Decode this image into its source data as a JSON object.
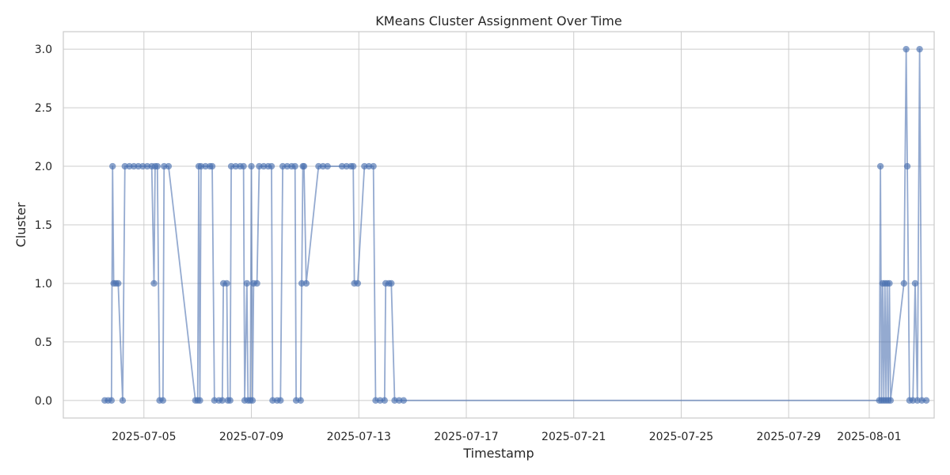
{
  "chart_data": {
    "type": "line",
    "title": "KMeans Cluster Assignment Over Time",
    "xlabel": "Timestamp",
    "ylabel": "Cluster",
    "x_range": [
      "2025-07-02T00:00",
      "2025-08-03T10:00"
    ],
    "ylim": [
      -0.15,
      3.15
    ],
    "y_ticks": [
      0.0,
      0.5,
      1.0,
      1.5,
      2.0,
      2.5,
      3.0
    ],
    "y_tick_labels": [
      "0.0",
      "0.5",
      "1.0",
      "1.5",
      "2.0",
      "2.5",
      "3.0"
    ],
    "x_ticks": [
      "2025-07-05",
      "2025-07-09",
      "2025-07-13",
      "2025-07-17",
      "2025-07-21",
      "2025-07-25",
      "2025-07-29",
      "2025-08-01"
    ],
    "grid": true,
    "legend": "none",
    "series": [
      {
        "color": "#4c72b0",
        "points": [
          [
            "2025-07-03T13:00",
            0
          ],
          [
            "2025-07-03T16:00",
            0
          ],
          [
            "2025-07-03T19:00",
            0
          ],
          [
            "2025-07-03T20:00",
            2
          ],
          [
            "2025-07-03T21:00",
            1
          ],
          [
            "2025-07-03T23:00",
            1
          ],
          [
            "2025-07-04T01:00",
            1
          ],
          [
            "2025-07-04T05:00",
            0
          ],
          [
            "2025-07-04T07:00",
            2
          ],
          [
            "2025-07-04T11:00",
            2
          ],
          [
            "2025-07-04T15:00",
            2
          ],
          [
            "2025-07-04T19:00",
            2
          ],
          [
            "2025-07-04T23:00",
            2
          ],
          [
            "2025-07-05T03:00",
            2
          ],
          [
            "2025-07-05T07:00",
            2
          ],
          [
            "2025-07-05T09:00",
            1
          ],
          [
            "2025-07-05T10:00",
            2
          ],
          [
            "2025-07-05T12:00",
            2
          ],
          [
            "2025-07-05T14:00",
            0
          ],
          [
            "2025-07-05T17:00",
            0
          ],
          [
            "2025-07-05T18:00",
            2
          ],
          [
            "2025-07-05T22:00",
            2
          ],
          [
            "2025-07-06T22:00",
            0
          ],
          [
            "2025-07-07T00:00",
            0
          ],
          [
            "2025-07-07T01:00",
            2
          ],
          [
            "2025-07-07T02:00",
            0
          ],
          [
            "2025-07-07T03:00",
            2
          ],
          [
            "2025-07-07T07:00",
            2
          ],
          [
            "2025-07-07T11:00",
            2
          ],
          [
            "2025-07-07T13:00",
            2
          ],
          [
            "2025-07-07T15:00",
            0
          ],
          [
            "2025-07-07T19:00",
            0
          ],
          [
            "2025-07-07T22:00",
            0
          ],
          [
            "2025-07-07T23:00",
            1
          ],
          [
            "2025-07-08T02:00",
            1
          ],
          [
            "2025-07-08T03:00",
            0
          ],
          [
            "2025-07-08T05:00",
            0
          ],
          [
            "2025-07-08T06:00",
            2
          ],
          [
            "2025-07-08T10:00",
            2
          ],
          [
            "2025-07-08T14:00",
            2
          ],
          [
            "2025-07-08T17:00",
            2
          ],
          [
            "2025-07-08T18:00",
            0
          ],
          [
            "2025-07-08T20:00",
            1
          ],
          [
            "2025-07-08T21:00",
            0
          ],
          [
            "2025-07-08T23:00",
            0
          ],
          [
            "2025-07-09T00:00",
            2
          ],
          [
            "2025-07-09T01:00",
            0
          ],
          [
            "2025-07-09T02:00",
            1
          ],
          [
            "2025-07-09T05:00",
            1
          ],
          [
            "2025-07-09T07:00",
            2
          ],
          [
            "2025-07-09T11:00",
            2
          ],
          [
            "2025-07-09T15:00",
            2
          ],
          [
            "2025-07-09T18:00",
            2
          ],
          [
            "2025-07-09T19:00",
            0
          ],
          [
            "2025-07-09T23:00",
            0
          ],
          [
            "2025-07-10T02:00",
            0
          ],
          [
            "2025-07-10T04:00",
            2
          ],
          [
            "2025-07-10T08:00",
            2
          ],
          [
            "2025-07-10T12:00",
            2
          ],
          [
            "2025-07-10T15:00",
            2
          ],
          [
            "2025-07-10T16:00",
            0
          ],
          [
            "2025-07-10T20:00",
            0
          ],
          [
            "2025-07-10T21:00",
            1
          ],
          [
            "2025-07-10T22:00",
            2
          ],
          [
            "2025-07-10T23:00",
            2
          ],
          [
            "2025-07-11T01:00",
            1
          ],
          [
            "2025-07-11T12:00",
            2
          ],
          [
            "2025-07-11T16:00",
            2
          ],
          [
            "2025-07-11T20:00",
            2
          ],
          [
            "2025-07-12T09:00",
            2
          ],
          [
            "2025-07-12T13:00",
            2
          ],
          [
            "2025-07-12T17:00",
            2
          ],
          [
            "2025-07-12T19:00",
            2
          ],
          [
            "2025-07-12T20:00",
            1
          ],
          [
            "2025-07-12T23:00",
            1
          ],
          [
            "2025-07-13T05:00",
            2
          ],
          [
            "2025-07-13T09:00",
            2
          ],
          [
            "2025-07-13T13:00",
            2
          ],
          [
            "2025-07-13T15:00",
            0
          ],
          [
            "2025-07-13T19:00",
            0
          ],
          [
            "2025-07-13T23:00",
            0
          ],
          [
            "2025-07-14T00:00",
            1
          ],
          [
            "2025-07-14T03:00",
            1
          ],
          [
            "2025-07-14T05:00",
            1
          ],
          [
            "2025-07-14T08:00",
            0
          ],
          [
            "2025-07-14T12:00",
            0
          ],
          [
            "2025-07-14T16:00",
            0
          ],
          [
            "2025-08-01T09:00",
            0
          ],
          [
            "2025-08-01T10:00",
            2
          ],
          [
            "2025-08-01T11:00",
            0
          ],
          [
            "2025-08-01T12:00",
            1
          ],
          [
            "2025-08-01T13:00",
            0
          ],
          [
            "2025-08-01T14:00",
            1
          ],
          [
            "2025-08-01T15:00",
            0
          ],
          [
            "2025-08-01T16:00",
            1
          ],
          [
            "2025-08-01T17:00",
            0
          ],
          [
            "2025-08-01T18:00",
            1
          ],
          [
            "2025-08-01T19:00",
            0
          ],
          [
            "2025-08-02T07:00",
            1
          ],
          [
            "2025-08-02T09:00",
            3
          ],
          [
            "2025-08-02T10:00",
            2
          ],
          [
            "2025-08-02T12:00",
            0
          ],
          [
            "2025-08-02T15:00",
            0
          ],
          [
            "2025-08-02T17:00",
            1
          ],
          [
            "2025-08-02T19:00",
            0
          ],
          [
            "2025-08-02T21:00",
            3
          ],
          [
            "2025-08-02T23:00",
            0
          ],
          [
            "2025-08-03T03:00",
            0
          ]
        ]
      }
    ]
  }
}
